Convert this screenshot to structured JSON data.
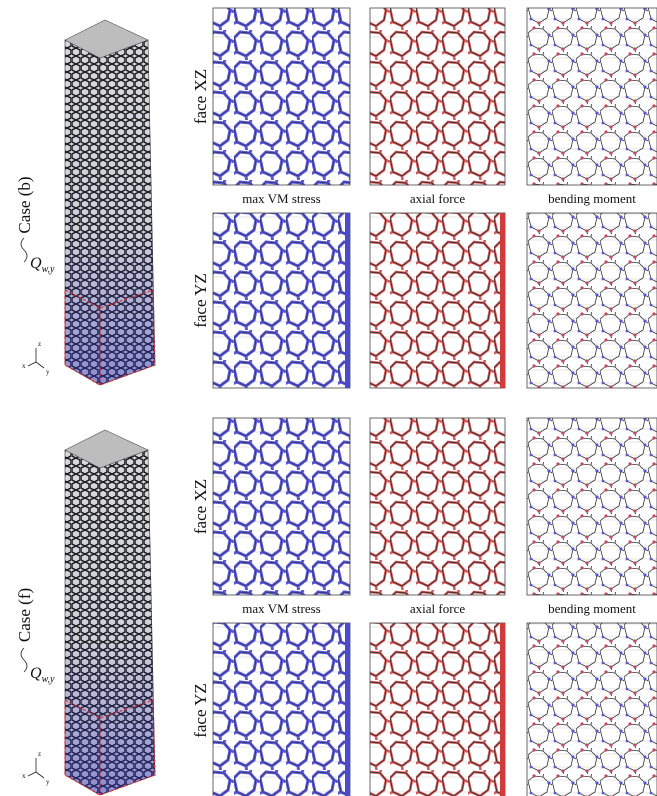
{
  "cases": [
    {
      "label": "Case (b)",
      "load": {
        "symbol": "Q",
        "subscript": "w,y"
      },
      "axes": [
        "z",
        "x",
        "y"
      ],
      "faces": [
        "face XZ",
        "face YZ"
      ],
      "quantities": [
        "max VM stress",
        "axial force",
        "bending moment"
      ]
    },
    {
      "label": "Case (f)",
      "load": {
        "symbol": "Q",
        "subscript": "w,y"
      },
      "axes": [
        "z",
        "x",
        "y"
      ],
      "faces": [
        "face XZ",
        "face YZ"
      ],
      "quantities": [
        "max VM stress",
        "axial force",
        "bending moment"
      ]
    }
  ]
}
